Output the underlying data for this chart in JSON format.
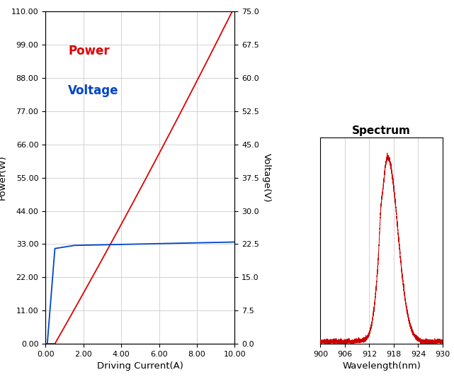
{
  "left_chart": {
    "xlabel": "Driving Current(A)",
    "ylabel_left": "Power(W)",
    "ylabel_right": "Voltage(V)",
    "xlim": [
      0.0,
      10.0
    ],
    "ylim_left": [
      0.0,
      110.0
    ],
    "ylim_right": [
      0.0,
      75.0
    ],
    "xticks": [
      0.0,
      2.0,
      4.0,
      6.0,
      8.0,
      10.0
    ],
    "yticks_left": [
      0.0,
      11.0,
      22.0,
      33.0,
      44.0,
      55.0,
      66.0,
      77.0,
      88.0,
      99.0,
      110.0
    ],
    "yticks_right": [
      0.0,
      7.5,
      15.0,
      22.5,
      30.0,
      37.5,
      45.0,
      52.5,
      60.0,
      67.5,
      75.0
    ],
    "power_color": "#dd0000",
    "voltage_color": "#0044cc",
    "label_power": "Power",
    "label_voltage": "Voltage",
    "grid_color": "#cccccc"
  },
  "right_chart": {
    "title": "Spectrum",
    "xlabel": "Wavelength(nm)",
    "xlim": [
      900,
      930
    ],
    "xticks": [
      900,
      906,
      912,
      918,
      924,
      930
    ],
    "spectrum_color": "#cc0000",
    "grid_color": "#cccccc"
  },
  "fig_background": "#ffffff"
}
